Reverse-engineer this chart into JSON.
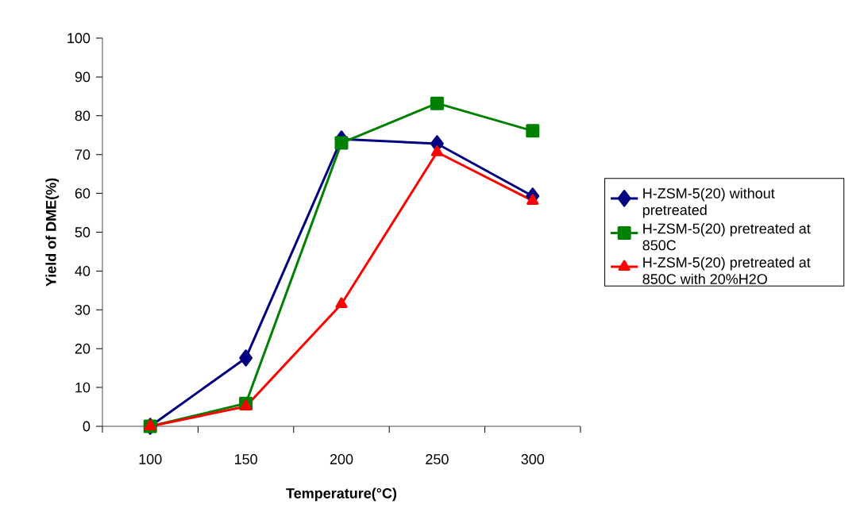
{
  "chart_data": {
    "type": "line",
    "xlabel": "Temperature(°C)",
    "ylabel": "Yield of DME(%)",
    "categories": [
      "100",
      "150",
      "200",
      "250",
      "300"
    ],
    "series": [
      {
        "name": "H-ZSM-5(20) without pretreated",
        "color": "#000080",
        "marker": "diamond",
        "values": [
          0,
          17.6,
          74,
          72.8,
          59.3
        ]
      },
      {
        "name": "H-ZSM-5(20) pretreated at 850C",
        "color": "#008000",
        "marker": "square",
        "values": [
          0,
          5.9,
          73,
          83.2,
          76.1
        ]
      },
      {
        "name": "H-ZSM-5(20) pretreated at 850C with 20%H2O",
        "color": "#ff0000",
        "marker": "triangle",
        "values": [
          0,
          5.1,
          31.5,
          70.6,
          58.1
        ]
      }
    ],
    "ylim": [
      0,
      100
    ],
    "yticks": [
      0,
      10,
      20,
      30,
      40,
      50,
      60,
      70,
      80,
      90,
      100
    ],
    "grid": false,
    "legend": "right"
  }
}
